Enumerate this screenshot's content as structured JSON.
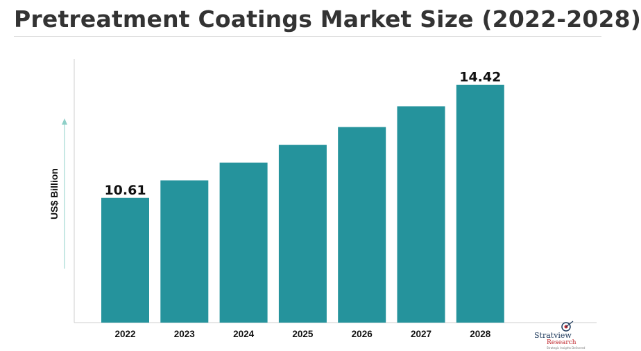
{
  "title": "Pretreatment Coatings Market Size (2022-2028)",
  "colors": {
    "bar": "#25939c",
    "arrow": "#8fd0c8",
    "axis": "#cfcfcf",
    "text": "#111111"
  },
  "chart_data": {
    "type": "bar",
    "title": "Pretreatment Coatings Market Size (2022-2028)",
    "xlabel": "",
    "ylabel": "US$ Billion",
    "categories": [
      "2022",
      "2023",
      "2024",
      "2025",
      "2026",
      "2027",
      "2028"
    ],
    "values": [
      10.61,
      11.2,
      11.8,
      12.4,
      13.0,
      13.7,
      14.42
    ],
    "data_labels": [
      "10.61",
      "",
      "",
      "",
      "",
      "",
      "14.42"
    ],
    "ylim": [
      6.4,
      15.3
    ],
    "grid": false,
    "legend": "none"
  },
  "logo": {
    "name": "Stratview",
    "sub": "Research",
    "tagline": "Strategic Insights Delivered"
  }
}
